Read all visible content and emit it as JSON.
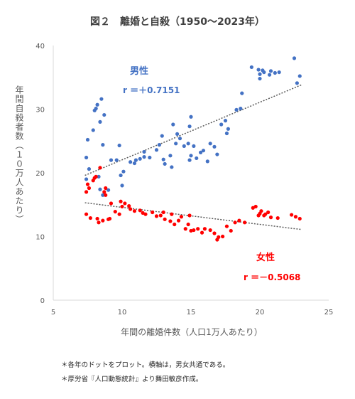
{
  "title": "図２　離婚と自殺（1950〜2023年）",
  "notes": [
    "＊各年のドットをプロット。横軸は，男女共通である。",
    "＊厚労省『人口動態統計』より舞田敏彦作成。"
  ],
  "colors": {
    "male": "#4472C4",
    "female": "#FF0000",
    "axis": "#D9D9D9",
    "trend": "#595959"
  },
  "chart_data": {
    "type": "scatter",
    "title": "図２　離婚と自殺（1950〜2023年）",
    "xlabel": "年間の離婚件数（人口1万人あたり）",
    "ylabel": "年間自殺者数（１０万人あたり）",
    "xlim": [
      5,
      25
    ],
    "ylim": [
      0,
      40
    ],
    "xticks": [
      "5",
      "10",
      "15",
      "20",
      "25"
    ],
    "yticks": [
      "0",
      "10",
      "20",
      "30",
      "40"
    ],
    "grid": false,
    "series": [
      {
        "name": "男性",
        "annotation": "r ＝＋0.7151",
        "color": "#4472C4",
        "trend": {
          "x": [
            7.3,
            23
          ],
          "y": [
            19.6,
            33.8
          ]
        },
        "points": [
          [
            7.4,
            19.0
          ],
          [
            7.4,
            22.4
          ],
          [
            7.5,
            25.2
          ],
          [
            7.6,
            20.6
          ],
          [
            7.9,
            26.7
          ],
          [
            8.0,
            29.8
          ],
          [
            8.1,
            30.1
          ],
          [
            8.2,
            30.7
          ],
          [
            8.4,
            28.0
          ],
          [
            8.5,
            31.6
          ],
          [
            8.7,
            29.1
          ],
          [
            8.6,
            24.4
          ],
          [
            8.3,
            19.4
          ],
          [
            8.4,
            17.4
          ],
          [
            8.6,
            16.5
          ],
          [
            9.0,
            17.3
          ],
          [
            9.2,
            22.0
          ],
          [
            9.6,
            22.0
          ],
          [
            9.8,
            24.3
          ],
          [
            9.9,
            19.6
          ],
          [
            10.1,
            20.2
          ],
          [
            10.0,
            18.0
          ],
          [
            10.6,
            21.7
          ],
          [
            10.9,
            21.5
          ],
          [
            11.0,
            22.0
          ],
          [
            11.3,
            22.2
          ],
          [
            11.6,
            22.5
          ],
          [
            11.6,
            23.3
          ],
          [
            12.0,
            22.4
          ],
          [
            12.5,
            23.6
          ],
          [
            12.7,
            24.4
          ],
          [
            12.9,
            25.8
          ],
          [
            13.0,
            22.1
          ],
          [
            13.1,
            21.4
          ],
          [
            13.5,
            22.7
          ],
          [
            13.6,
            20.9
          ],
          [
            13.7,
            27.6
          ],
          [
            13.9,
            24.6
          ],
          [
            14.0,
            26.1
          ],
          [
            14.2,
            25.4
          ],
          [
            14.5,
            24.2
          ],
          [
            14.8,
            24.6
          ],
          [
            14.9,
            27.3
          ],
          [
            15.0,
            28.8
          ],
          [
            14.9,
            22.0
          ],
          [
            15.0,
            22.7
          ],
          [
            15.2,
            24.2
          ],
          [
            15.4,
            22.3
          ],
          [
            15.7,
            23.2
          ],
          [
            15.9,
            23.5
          ],
          [
            16.2,
            21.8
          ],
          [
            16.4,
            24.6
          ],
          [
            16.7,
            24.1
          ],
          [
            16.9,
            22.9
          ],
          [
            17.2,
            27.6
          ],
          [
            17.5,
            28.2
          ],
          [
            17.6,
            26.2
          ],
          [
            17.7,
            26.9
          ],
          [
            18.3,
            29.9
          ],
          [
            18.6,
            30.1
          ],
          [
            18.7,
            32.5
          ],
          [
            19.4,
            36.6
          ],
          [
            19.9,
            36.2
          ],
          [
            20.0,
            34.8
          ],
          [
            20.0,
            35.5
          ],
          [
            20.2,
            36.1
          ],
          [
            20.3,
            35.8
          ],
          [
            20.7,
            35.4
          ],
          [
            20.8,
            36.0
          ],
          [
            21.1,
            35.7
          ],
          [
            21.4,
            35.8
          ],
          [
            22.5,
            38.0
          ],
          [
            22.7,
            34.1
          ],
          [
            22.9,
            35.2
          ]
        ]
      },
      {
        "name": "女性",
        "annotation": "r ＝－0.5068",
        "color": "#FF0000",
        "trend": {
          "x": [
            7.3,
            23
          ],
          "y": [
            15.3,
            11.1
          ]
        },
        "points": [
          [
            7.4,
            13.5
          ],
          [
            7.4,
            17.0
          ],
          [
            7.5,
            18.2
          ],
          [
            7.6,
            17.6
          ],
          [
            7.7,
            12.9
          ],
          [
            7.9,
            18.8
          ],
          [
            8.0,
            19.2
          ],
          [
            8.1,
            19.4
          ],
          [
            8.2,
            12.8
          ],
          [
            8.3,
            12.2
          ],
          [
            8.4,
            20.8
          ],
          [
            8.6,
            12.5
          ],
          [
            8.7,
            17.0
          ],
          [
            8.8,
            17.6
          ],
          [
            8.8,
            16.5
          ],
          [
            9.0,
            12.7
          ],
          [
            9.1,
            12.8
          ],
          [
            9.2,
            15.2
          ],
          [
            9.5,
            13.9
          ],
          [
            9.8,
            13.5
          ],
          [
            9.9,
            15.5
          ],
          [
            10.0,
            14.7
          ],
          [
            10.2,
            15.2
          ],
          [
            10.5,
            14.8
          ],
          [
            10.6,
            14.3
          ],
          [
            10.9,
            14.0
          ],
          [
            11.3,
            14.1
          ],
          [
            11.5,
            13.7
          ],
          [
            11.7,
            13.5
          ],
          [
            12.2,
            13.8
          ],
          [
            12.5,
            13.2
          ],
          [
            12.8,
            13.3
          ],
          [
            13.0,
            13.8
          ],
          [
            13.1,
            12.7
          ],
          [
            13.5,
            12.4
          ],
          [
            13.6,
            13.5
          ],
          [
            13.8,
            11.9
          ],
          [
            14.1,
            12.5
          ],
          [
            14.3,
            13.1
          ],
          [
            14.6,
            11.2
          ],
          [
            14.8,
            11.9
          ],
          [
            14.9,
            13.3
          ],
          [
            15.0,
            10.9
          ],
          [
            15.2,
            11.0
          ],
          [
            15.5,
            11.2
          ],
          [
            15.8,
            10.6
          ],
          [
            16.0,
            11.2
          ],
          [
            16.4,
            11.0
          ],
          [
            16.7,
            10.5
          ],
          [
            16.9,
            9.5
          ],
          [
            17.0,
            9.9
          ],
          [
            17.3,
            10.0
          ],
          [
            17.6,
            11.6
          ],
          [
            17.9,
            10.9
          ],
          [
            18.2,
            12.2
          ],
          [
            18.5,
            12.5
          ],
          [
            18.9,
            12.2
          ],
          [
            19.5,
            14.5
          ],
          [
            19.7,
            14.7
          ],
          [
            19.9,
            13.3
          ],
          [
            20.0,
            13.6
          ],
          [
            20.1,
            14.0
          ],
          [
            20.3,
            13.3
          ],
          [
            20.4,
            13.5
          ],
          [
            20.6,
            13.8
          ],
          [
            20.8,
            13.0
          ],
          [
            21.3,
            12.9
          ],
          [
            22.3,
            13.4
          ],
          [
            22.6,
            13.1
          ],
          [
            22.9,
            12.8
          ]
        ]
      }
    ]
  }
}
